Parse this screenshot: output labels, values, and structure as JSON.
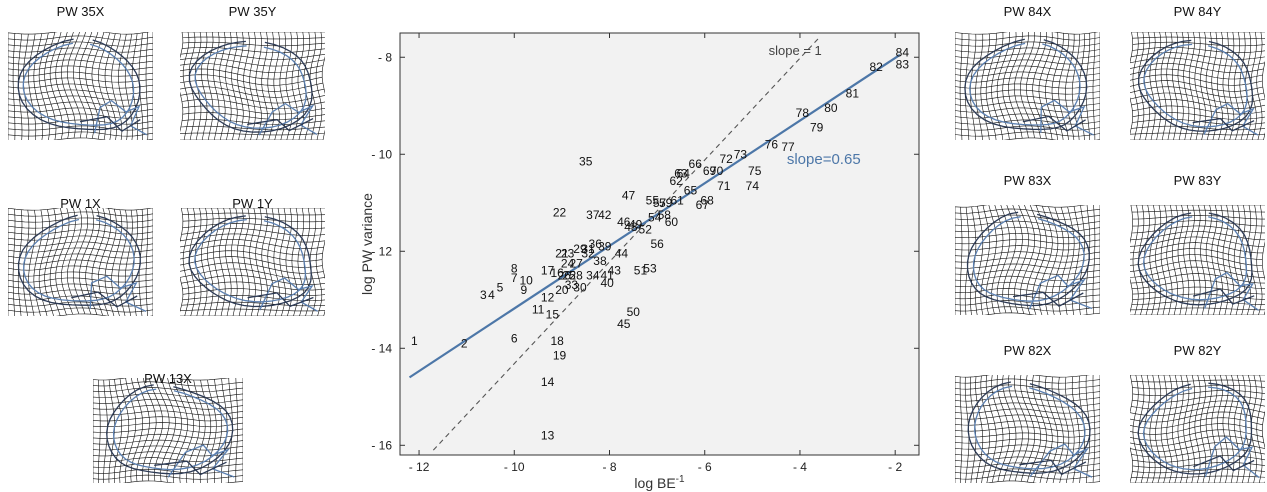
{
  "panels": {
    "left": [
      {
        "id": "pw35x",
        "title": "PW 35X"
      },
      {
        "id": "pw35y",
        "title": "PW 35Y"
      },
      {
        "id": "pw1x",
        "title": "PW 1X"
      },
      {
        "id": "pw1y",
        "title": "PW 1Y"
      },
      {
        "id": "pw13x",
        "title": "PW 13X"
      }
    ],
    "right": [
      {
        "id": "pw84x",
        "title": "PW 84X"
      },
      {
        "id": "pw84y",
        "title": "PW 84Y"
      },
      {
        "id": "pw83x",
        "title": "PW 83X"
      },
      {
        "id": "pw83y",
        "title": "PW 83Y"
      },
      {
        "id": "pw82x",
        "title": "PW 82X"
      },
      {
        "id": "pw82y",
        "title": "PW 82Y"
      }
    ]
  },
  "colors": {
    "grid": "#111111",
    "outline": "#5a7fb0",
    "fit_line": "#4d77a8",
    "reference_line": "#555555",
    "plot_background": "#f2f2f2"
  },
  "chart_data": {
    "type": "scatter",
    "xlabel": "log BE",
    "xlabel_superscript": "-1",
    "ylabel": "log PW variance",
    "xlim": [
      -12.4,
      -1.5
    ],
    "ylim": [
      -16.2,
      -7.5
    ],
    "xticks": [
      -12,
      -10,
      -8,
      -6,
      -4,
      -2
    ],
    "yticks": [
      -16,
      -14,
      -12,
      -10,
      -8
    ],
    "grid": false,
    "lines": [
      {
        "name": "slope = 1",
        "style": "dashed",
        "x": [
          -11.7,
          -3.6
        ],
        "y": [
          -16.1,
          -7.6
        ]
      },
      {
        "name": "slope=0.65",
        "style": "solid",
        "x": [
          -12.2,
          -1.9
        ],
        "y": [
          -14.6,
          -7.95
        ]
      }
    ],
    "points": [
      {
        "label": "1",
        "x": -12.1,
        "y": -13.85
      },
      {
        "label": "2",
        "x": -11.05,
        "y": -13.9
      },
      {
        "label": "3",
        "x": -10.65,
        "y": -12.9
      },
      {
        "label": "4",
        "x": -10.48,
        "y": -12.9
      },
      {
        "label": "5",
        "x": -10.3,
        "y": -12.75
      },
      {
        "label": "6",
        "x": -10.0,
        "y": -13.8
      },
      {
        "label": "7",
        "x": -10.0,
        "y": -12.55
      },
      {
        "label": "8",
        "x": -10.0,
        "y": -12.35
      },
      {
        "label": "9",
        "x": -9.8,
        "y": -12.8
      },
      {
        "label": "10",
        "x": -9.75,
        "y": -12.6
      },
      {
        "label": "11",
        "x": -9.5,
        "y": -13.2
      },
      {
        "label": "12",
        "x": -9.3,
        "y": -12.95
      },
      {
        "label": "13",
        "x": -9.3,
        "y": -15.8
      },
      {
        "label": "14",
        "x": -9.3,
        "y": -14.7
      },
      {
        "label": "15",
        "x": -9.2,
        "y": -13.3
      },
      {
        "label": "16",
        "x": -9.1,
        "y": -12.45
      },
      {
        "label": "17",
        "x": -9.3,
        "y": -12.4
      },
      {
        "label": "18",
        "x": -9.1,
        "y": -13.85
      },
      {
        "label": "19",
        "x": -9.05,
        "y": -14.15
      },
      {
        "label": "20",
        "x": -9.0,
        "y": -12.8
      },
      {
        "label": "21",
        "x": -9.0,
        "y": -12.05
      },
      {
        "label": "22",
        "x": -9.05,
        "y": -11.2
      },
      {
        "label": "23",
        "x": -8.88,
        "y": -12.05
      },
      {
        "label": "24",
        "x": -8.88,
        "y": -12.25
      },
      {
        "label": "25",
        "x": -8.85,
        "y": -12.5
      },
      {
        "label": "26",
        "x": -8.95,
        "y": -12.5
      },
      {
        "label": "27",
        "x": -8.7,
        "y": -12.25
      },
      {
        "label": "28",
        "x": -8.7,
        "y": -12.5
      },
      {
        "label": "29",
        "x": -8.62,
        "y": -11.95
      },
      {
        "label": "30",
        "x": -8.62,
        "y": -12.75
      },
      {
        "label": "31",
        "x": -8.45,
        "y": -11.95
      },
      {
        "label": "32",
        "x": -8.45,
        "y": -12.05
      },
      {
        "label": "33",
        "x": -8.8,
        "y": -12.7
      },
      {
        "label": "34",
        "x": -8.35,
        "y": -12.5
      },
      {
        "label": "35",
        "x": -8.5,
        "y": -10.15
      },
      {
        "label": "36",
        "x": -8.3,
        "y": -11.85
      },
      {
        "label": "37",
        "x": -8.35,
        "y": -11.25
      },
      {
        "label": "38",
        "x": -8.2,
        "y": -12.2
      },
      {
        "label": "39",
        "x": -8.1,
        "y": -11.9
      },
      {
        "label": "40",
        "x": -8.05,
        "y": -12.65
      },
      {
        "label": "41",
        "x": -8.05,
        "y": -12.5
      },
      {
        "label": "42",
        "x": -8.1,
        "y": -11.25
      },
      {
        "label": "43",
        "x": -7.9,
        "y": -12.4
      },
      {
        "label": "44",
        "x": -7.75,
        "y": -12.05
      },
      {
        "label": "45",
        "x": -7.7,
        "y": -13.5
      },
      {
        "label": "46",
        "x": -7.7,
        "y": -11.4
      },
      {
        "label": "47",
        "x": -7.6,
        "y": -10.85
      },
      {
        "label": "48",
        "x": -7.55,
        "y": -11.5
      },
      {
        "label": "49",
        "x": -7.45,
        "y": -11.45
      },
      {
        "label": "50",
        "x": -7.5,
        "y": -13.25
      },
      {
        "label": "51",
        "x": -7.35,
        "y": -12.4
      },
      {
        "label": "52",
        "x": -7.25,
        "y": -11.55
      },
      {
        "label": "53",
        "x": -7.15,
        "y": -12.35
      },
      {
        "label": "54",
        "x": -7.05,
        "y": -11.3
      },
      {
        "label": "55",
        "x": -7.1,
        "y": -10.95
      },
      {
        "label": "56",
        "x": -7.0,
        "y": -11.85
      },
      {
        "label": "57",
        "x": -6.95,
        "y": -11.0
      },
      {
        "label": "58",
        "x": -6.85,
        "y": -11.25
      },
      {
        "label": "59",
        "x": -6.82,
        "y": -11.0
      },
      {
        "label": "60",
        "x": -6.7,
        "y": -11.4
      },
      {
        "label": "61",
        "x": -6.58,
        "y": -10.95
      },
      {
        "label": "62",
        "x": -6.6,
        "y": -10.55
      },
      {
        "label": "63",
        "x": -6.5,
        "y": -10.4
      },
      {
        "label": "64",
        "x": -6.45,
        "y": -10.4
      },
      {
        "label": "65",
        "x": -6.3,
        "y": -10.75
      },
      {
        "label": "66",
        "x": -6.2,
        "y": -10.2
      },
      {
        "label": "67",
        "x": -6.05,
        "y": -11.05
      },
      {
        "label": "68",
        "x": -5.95,
        "y": -10.95
      },
      {
        "label": "69",
        "x": -5.9,
        "y": -10.35
      },
      {
        "label": "70",
        "x": -5.75,
        "y": -10.35
      },
      {
        "label": "71",
        "x": -5.6,
        "y": -10.65
      },
      {
        "label": "72",
        "x": -5.55,
        "y": -10.1
      },
      {
        "label": "73",
        "x": -5.25,
        "y": -10.0
      },
      {
        "label": "74",
        "x": -5.0,
        "y": -10.65
      },
      {
        "label": "75",
        "x": -4.95,
        "y": -10.35
      },
      {
        "label": "76",
        "x": -4.6,
        "y": -9.8
      },
      {
        "label": "77",
        "x": -4.25,
        "y": -9.85
      },
      {
        "label": "78",
        "x": -3.95,
        "y": -9.15
      },
      {
        "label": "79",
        "x": -3.65,
        "y": -9.45
      },
      {
        "label": "80",
        "x": -3.35,
        "y": -9.05
      },
      {
        "label": "81",
        "x": -2.9,
        "y": -8.75
      },
      {
        "label": "82",
        "x": -2.4,
        "y": -8.2
      },
      {
        "label": "83",
        "x": -1.85,
        "y": -8.15
      },
      {
        "label": "84",
        "x": -1.85,
        "y": -7.9
      }
    ],
    "annotations": [
      {
        "text": "slope = 1",
        "x": -4.1,
        "y": -7.85
      },
      {
        "text": "slope=0.65",
        "x": -3.5,
        "y": -10.1
      }
    ]
  }
}
